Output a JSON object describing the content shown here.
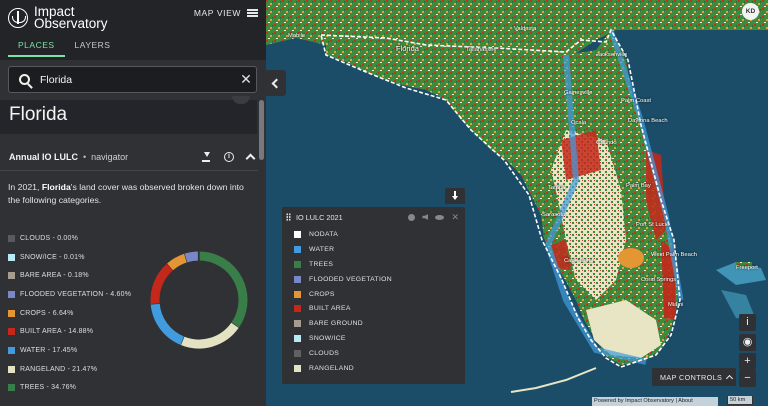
{
  "app": {
    "name_line1": "Impact",
    "name_line2": "Observatory"
  },
  "header": {
    "map_view_label": "MAP VIEW"
  },
  "tabs": [
    {
      "label": "PLACES",
      "active": true
    },
    {
      "label": "LAYERS",
      "active": false
    }
  ],
  "search": {
    "value": "Florida",
    "placeholder": ""
  },
  "place": {
    "title": "Florida"
  },
  "section": {
    "title": "Annual IO LULC",
    "subtitle": "navigator"
  },
  "description": {
    "pre": "In 2021, ",
    "place": "Florida",
    "post": "'s land cover was observed broken down into the following categories."
  },
  "categories": [
    {
      "label": "CLOUDS - 0.00%",
      "color": "#5a5a5a",
      "value": 0.0
    },
    {
      "label": "SNOW/ICE - 0.01%",
      "color": "#b9e9f5",
      "value": 0.01
    },
    {
      "label": "BARE AREA - 0.18%",
      "color": "#a59b8f",
      "value": 0.18
    },
    {
      "label": "FLOODED VEGETATION - 4.60%",
      "color": "#7a87c6",
      "value": 4.6
    },
    {
      "label": "CROPS - 6.64%",
      "color": "#e49635",
      "value": 6.64
    },
    {
      "label": "BUILT AREA - 14.88%",
      "color": "#c4281b",
      "value": 14.88
    },
    {
      "label": "WATER - 17.45%",
      "color": "#419bdf",
      "value": 17.45
    },
    {
      "label": "RANGELAND - 21.47%",
      "color": "#e3e2c3",
      "value": 21.47
    },
    {
      "label": "TREES - 34.76%",
      "color": "#397d49",
      "value": 34.76
    }
  ],
  "map": {
    "labels": [
      {
        "text": "Florida",
        "kind": "state"
      },
      {
        "text": "Tallahassee"
      },
      {
        "text": "Jacksonville"
      },
      {
        "text": "Gainesville"
      },
      {
        "text": "Ocala"
      },
      {
        "text": "Palm Coast"
      },
      {
        "text": "Daytona Beach"
      },
      {
        "text": "Orlando"
      },
      {
        "text": "Tampa"
      },
      {
        "text": "Palm Bay"
      },
      {
        "text": "Sarasota"
      },
      {
        "text": "Port St Lucie"
      },
      {
        "text": "Cape Coral"
      },
      {
        "text": "West Palm Beach"
      },
      {
        "text": "Coral Springs"
      },
      {
        "text": "Miami"
      },
      {
        "text": "Freeport"
      },
      {
        "text": "Mobile"
      },
      {
        "text": "Valdosta"
      }
    ],
    "avatar_initials": "KD",
    "map_controls_label": "MAP CONTROLS",
    "attribution": "Powered by Impact Observatory | About",
    "scale_label": "50 km"
  },
  "legend_panel": {
    "title": "IO LULC 2021",
    "items": [
      {
        "label": "NODATA",
        "color": "#ffffff"
      },
      {
        "label": "WATER",
        "color": "#419bdf"
      },
      {
        "label": "TREES",
        "color": "#397d49"
      },
      {
        "label": "FLOODED VEGETATION",
        "color": "#7a87c6"
      },
      {
        "label": "CROPS",
        "color": "#e49635"
      },
      {
        "label": "BUILT AREA",
        "color": "#c4281b"
      },
      {
        "label": "BARE GROUND",
        "color": "#a59b8f"
      },
      {
        "label": "SNOW/ICE",
        "color": "#b9e9f5"
      },
      {
        "label": "CLOUDS",
        "color": "#616161"
      },
      {
        "label": "RANGELAND",
        "color": "#e3e2c3"
      }
    ]
  }
}
